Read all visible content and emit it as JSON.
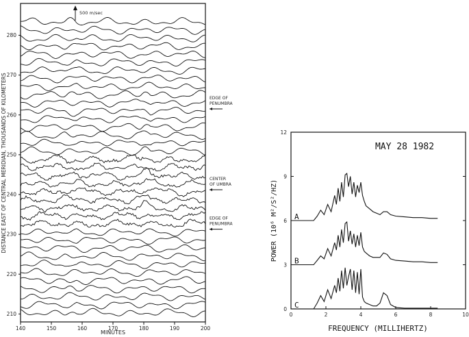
{
  "chart_data": [
    {
      "type": "line",
      "panel": "left",
      "xlabel": "MINUTES",
      "ylabel": "DISTANCE EAST OF CENTRAL MERIDIAN, THOUSANDS OF KILOMETERS",
      "xlim": [
        140,
        200
      ],
      "xticks": [
        140,
        150,
        160,
        170,
        180,
        190,
        200
      ],
      "ylim": [
        208,
        288
      ],
      "yticks": [
        210,
        220,
        230,
        240,
        250,
        260,
        270,
        280
      ],
      "trace_count": 37,
      "scale_bar": "500 m/sec",
      "annotations": [
        {
          "label": [
            "EDGE OF",
            "PENUMBRA"
          ],
          "y": 261.5
        },
        {
          "label": [
            "CENTER",
            "OF UMBRA"
          ],
          "y": 241.2
        },
        {
          "label": [
            "EDGE OF",
            "PENUMBRA"
          ],
          "y": 231.3
        }
      ]
    },
    {
      "type": "line",
      "panel": "right",
      "title": "MAY 28 1982",
      "xlabel": "FREQUENCY (MILLIHERTZ)",
      "ylabel": "POWER (10⁶ M²/S²/HZ)",
      "xlim": [
        0,
        10
      ],
      "xticks": [
        0,
        2,
        4,
        6,
        8,
        10
      ],
      "ylim": [
        0,
        12
      ],
      "yticks": [
        0,
        3,
        6,
        9,
        12
      ],
      "series": [
        {
          "name": "A",
          "offset": 6,
          "x": [
            1.0,
            1.3,
            1.5,
            1.7,
            1.9,
            2.1,
            2.3,
            2.5,
            2.6,
            2.7,
            2.8,
            2.9,
            3.0,
            3.1,
            3.2,
            3.3,
            3.4,
            3.5,
            3.6,
            3.7,
            3.8,
            3.9,
            4.0,
            4.1,
            4.2,
            4.3,
            4.5,
            4.7,
            4.9,
            5.1,
            5.3,
            5.5,
            5.7,
            6.0,
            6.5,
            7.0,
            7.5,
            8.0,
            8.4
          ],
          "y": [
            6.0,
            6.0,
            6.3,
            6.7,
            6.4,
            7.1,
            6.6,
            7.7,
            7.1,
            8.2,
            7.3,
            8.6,
            7.6,
            9.1,
            9.2,
            8.3,
            9.0,
            7.8,
            8.6,
            7.6,
            8.4,
            7.9,
            8.6,
            7.7,
            7.3,
            7.0,
            6.8,
            6.6,
            6.5,
            6.4,
            6.6,
            6.6,
            6.4,
            6.3,
            6.25,
            6.2,
            6.2,
            6.15,
            6.15
          ]
        },
        {
          "name": "B",
          "offset": 3,
          "x": [
            1.0,
            1.3,
            1.5,
            1.7,
            1.9,
            2.1,
            2.3,
            2.5,
            2.6,
            2.7,
            2.8,
            2.9,
            3.0,
            3.1,
            3.2,
            3.3,
            3.4,
            3.5,
            3.6,
            3.7,
            3.8,
            3.9,
            4.0,
            4.1,
            4.2,
            4.3,
            4.5,
            4.7,
            4.9,
            5.1,
            5.3,
            5.5,
            5.7,
            6.0,
            6.5,
            7.0,
            7.5,
            8.0,
            8.4
          ],
          "y": [
            3.0,
            3.0,
            3.3,
            3.6,
            3.4,
            4.1,
            3.6,
            4.5,
            4.0,
            5.0,
            4.2,
            5.4,
            4.5,
            5.8,
            5.9,
            4.6,
            5.3,
            4.4,
            5.1,
            4.2,
            5.0,
            4.3,
            5.2,
            4.2,
            3.9,
            3.8,
            3.6,
            3.5,
            3.5,
            3.5,
            3.8,
            3.7,
            3.4,
            3.3,
            3.25,
            3.2,
            3.2,
            3.15,
            3.15
          ]
        },
        {
          "name": "C",
          "offset": 0,
          "x": [
            1.0,
            1.3,
            1.5,
            1.7,
            1.9,
            2.1,
            2.3,
            2.5,
            2.6,
            2.7,
            2.8,
            2.9,
            3.0,
            3.1,
            3.2,
            3.3,
            3.4,
            3.5,
            3.6,
            3.7,
            3.8,
            3.9,
            4.0,
            4.1,
            4.2,
            4.3,
            4.5,
            4.7,
            4.9,
            5.1,
            5.3,
            5.5,
            5.7,
            6.0,
            6.5,
            7.0,
            7.5,
            8.0,
            8.4
          ],
          "y": [
            0.0,
            0.0,
            0.4,
            0.9,
            0.5,
            1.3,
            0.7,
            1.6,
            1.1,
            2.1,
            1.2,
            2.6,
            1.4,
            2.8,
            1.6,
            2.2,
            2.7,
            1.3,
            2.6,
            1.1,
            2.5,
            1.0,
            2.7,
            0.8,
            0.5,
            0.4,
            0.3,
            0.2,
            0.2,
            0.4,
            1.1,
            0.9,
            0.3,
            0.1,
            0.05,
            0.05,
            0.05,
            0.05,
            0.05
          ]
        }
      ]
    }
  ]
}
